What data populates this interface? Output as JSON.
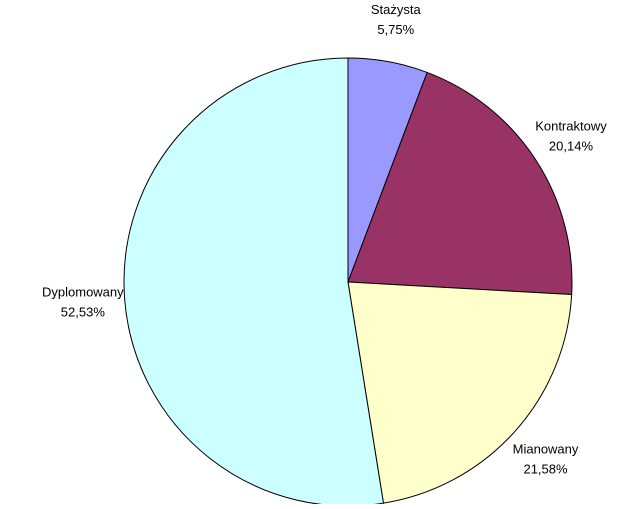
{
  "chart_data": {
    "type": "pie",
    "categories": [
      "Stażysta",
      "Kontraktowy",
      "Mianowany",
      "Dyplomowany"
    ],
    "values": [
      5.75,
      20.14,
      21.58,
      52.53
    ],
    "value_labels": [
      "5,75%",
      "20,14%",
      "21,58%",
      "52,53%"
    ],
    "colors": [
      "#9999ff",
      "#993366",
      "#ffffcc",
      "#ccffff"
    ]
  }
}
